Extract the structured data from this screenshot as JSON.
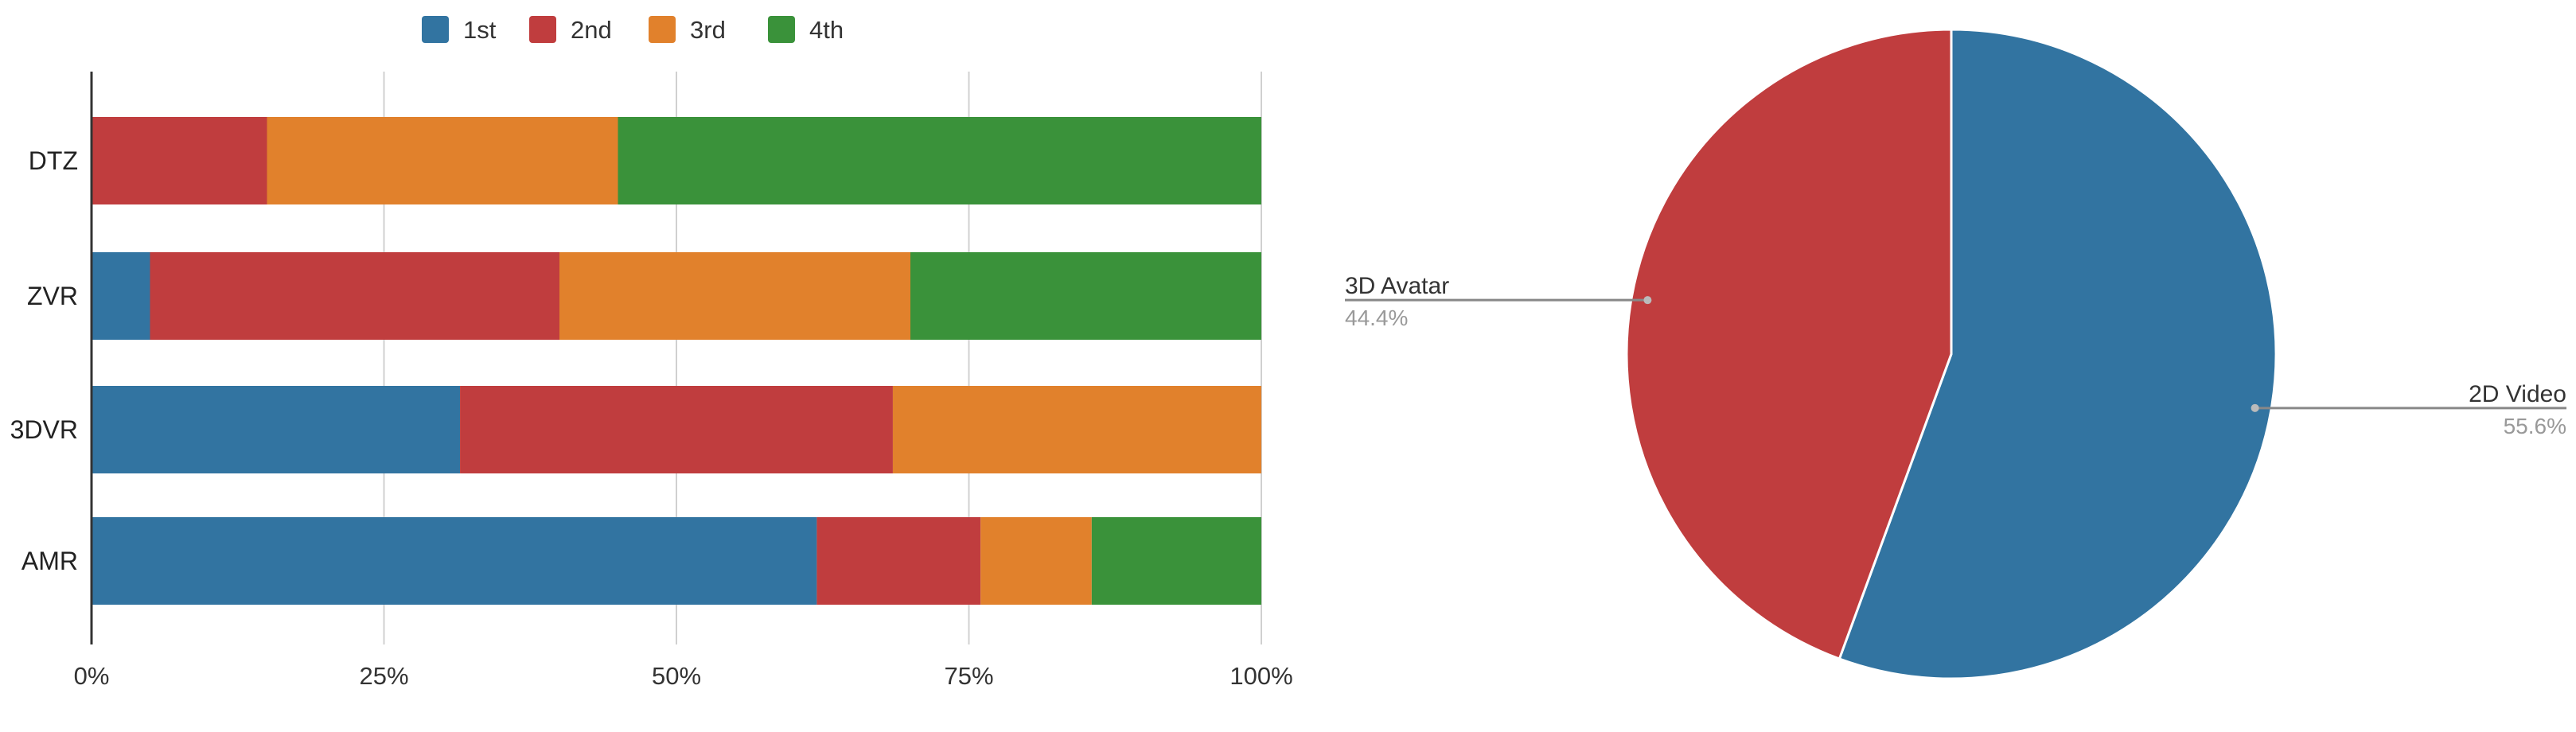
{
  "chart_data": [
    {
      "type": "bar",
      "orientation": "horizontal",
      "stacked": "percent",
      "categories": [
        "DTZ",
        "ZVR",
        "3DVR",
        "AMR"
      ],
      "series": [
        {
          "name": "1st",
          "color": "#3274a1",
          "values": [
            0,
            5,
            31.5,
            62
          ]
        },
        {
          "name": "2nd",
          "color": "#c03d3e",
          "values": [
            15,
            35,
            37,
            14
          ]
        },
        {
          "name": "3rd",
          "color": "#e1812c",
          "values": [
            30,
            30,
            31.5,
            9.5
          ]
        },
        {
          "name": "4th",
          "color": "#3a923a",
          "values": [
            55,
            30,
            0,
            14.5
          ]
        }
      ],
      "xlim": [
        0,
        100
      ],
      "x_ticks": [
        "0%",
        "25%",
        "50%",
        "75%",
        "100%"
      ],
      "grid": "vertical",
      "legend": "top"
    },
    {
      "type": "pie",
      "slices": [
        {
          "label": "2D Video",
          "percent_label": "55.6%",
          "value": 55.6,
          "color": "#3274a1"
        },
        {
          "label": "3D Avatar",
          "percent_label": "44.4%",
          "value": 44.4,
          "color": "#c03d3e"
        }
      ]
    }
  ]
}
